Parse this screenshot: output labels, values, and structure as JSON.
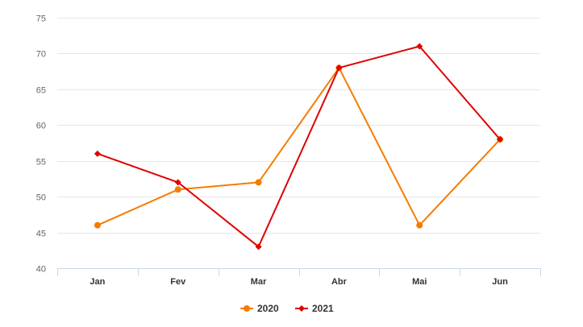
{
  "chart_data": {
    "type": "line",
    "categories": [
      "Jan",
      "Fev",
      "Mar",
      "Abr",
      "Mai",
      "Jun"
    ],
    "series": [
      {
        "name": "2020",
        "color": "#f57c00",
        "marker": "circle",
        "values": [
          46,
          51,
          52,
          68,
          46,
          58
        ]
      },
      {
        "name": "2021",
        "color": "#e00000",
        "marker": "diamond",
        "values": [
          56,
          52,
          43,
          68,
          71,
          58
        ]
      }
    ],
    "y_ticks": [
      "40",
      "45",
      "50",
      "55",
      "60",
      "65",
      "70",
      "75"
    ],
    "ylim": [
      40,
      75
    ],
    "grid": true,
    "legend_position": "bottom-center"
  }
}
